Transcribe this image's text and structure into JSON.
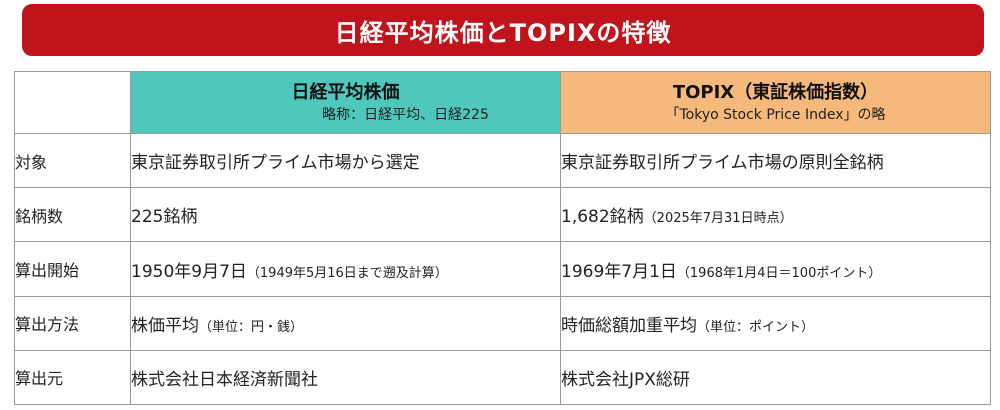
{
  "title": "日経平均株価とTOPIXの特徴",
  "header": {
    "nikkei": {
      "name": "日経平均株価",
      "sub": "略称：日経平均、日経225"
    },
    "topix": {
      "name": "TOPIX（東証株価指数）",
      "sub": "「Tokyo Stock Price Index」の略"
    }
  },
  "rows": [
    {
      "label": "対象",
      "nikkei": "東京証券取引所プライム市場から選定",
      "nikkei_note": "",
      "topix": "東京証券取引所プライム市場の原則全銘柄",
      "topix_note": ""
    },
    {
      "label": "銘柄数",
      "nikkei": "225銘柄",
      "nikkei_note": "",
      "topix": "1,682銘柄",
      "topix_note": "（2025年7月31日時点）"
    },
    {
      "label": "算出開始",
      "nikkei": "1950年9月7日",
      "nikkei_note": "（1949年5月16日まで遡及計算）",
      "topix": "1969年7月1日",
      "topix_note": "（1968年1月4日＝100ポイント）"
    },
    {
      "label": "算出方法",
      "nikkei": "株価平均",
      "nikkei_note": "（単位：円・銭）",
      "topix": "時価総額加重平均",
      "topix_note": "（単位：ポイント）"
    },
    {
      "label": "算出元",
      "nikkei": "株式会社日本経済新聞社",
      "nikkei_note": "",
      "topix": "株式会社JPX総研",
      "topix_note": ""
    }
  ]
}
